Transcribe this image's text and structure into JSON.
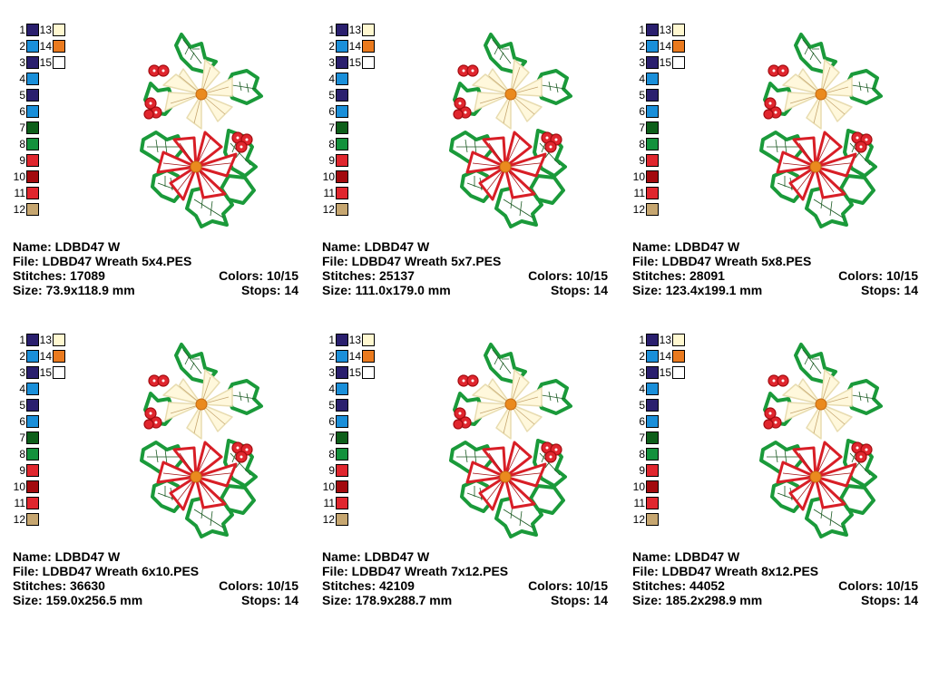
{
  "palette": [
    {
      "n": "1",
      "color": "#2a1f6e"
    },
    {
      "n": "2",
      "color": "#1a8fd9"
    },
    {
      "n": "3",
      "color": "#2a1f6e"
    },
    {
      "n": "4",
      "color": "#1a8fd9"
    },
    {
      "n": "5",
      "color": "#2a1f6e"
    },
    {
      "n": "6",
      "color": "#1a8fd9"
    },
    {
      "n": "7",
      "color": "#0d5f1a"
    },
    {
      "n": "8",
      "color": "#13913c"
    },
    {
      "n": "9",
      "color": "#e0262e"
    },
    {
      "n": "10",
      "color": "#a30a0e"
    },
    {
      "n": "11",
      "color": "#e0262e"
    },
    {
      "n": "12",
      "color": "#c6a670"
    },
    {
      "n": "13",
      "color": "#fff8d0"
    },
    {
      "n": "14",
      "color": "#ea7a1e"
    },
    {
      "n": "15",
      "color": "#ffffff"
    }
  ],
  "designs": [
    {
      "name": "Name: LDBD47 W",
      "file": "File: LDBD47 Wreath 5x4.PES",
      "stitches": "Stitches: 17089",
      "colors": "Colors: 10/15",
      "size": "Size: 73.9x118.9 mm",
      "stops": "Stops: 14"
    },
    {
      "name": "Name: LDBD47 W",
      "file": "File: LDBD47 Wreath 5x7.PES",
      "stitches": "Stitches: 25137",
      "colors": "Colors: 10/15",
      "size": "Size: 111.0x179.0 mm",
      "stops": "Stops: 14"
    },
    {
      "name": "Name: LDBD47 W",
      "file": "File: LDBD47 Wreath 5x8.PES",
      "stitches": "Stitches: 28091",
      "colors": "Colors: 10/15",
      "size": "Size: 123.4x199.1 mm",
      "stops": "Stops: 14"
    },
    {
      "name": "Name: LDBD47 W",
      "file": "File: LDBD47 Wreath 6x10.PES",
      "stitches": "Stitches: 36630",
      "colors": "Colors: 10/15",
      "size": "Size: 159.0x256.5 mm",
      "stops": "Stops: 14"
    },
    {
      "name": "Name: LDBD47 W",
      "file": "File: LDBD47 Wreath 7x12.PES",
      "stitches": "Stitches: 42109",
      "colors": "Colors: 10/15",
      "size": "Size: 178.9x288.7 mm",
      "stops": "Stops: 14"
    },
    {
      "name": "Name: LDBD47 W",
      "file": "File: LDBD47 Wreath 8x12.PES",
      "stitches": "Stitches: 44052",
      "colors": "Colors: 10/15",
      "size": "Size: 185.2x298.9 mm",
      "stops": "Stops: 14"
    }
  ],
  "design_image": "poinsettia-holly-freestanding-lace-embroidery"
}
